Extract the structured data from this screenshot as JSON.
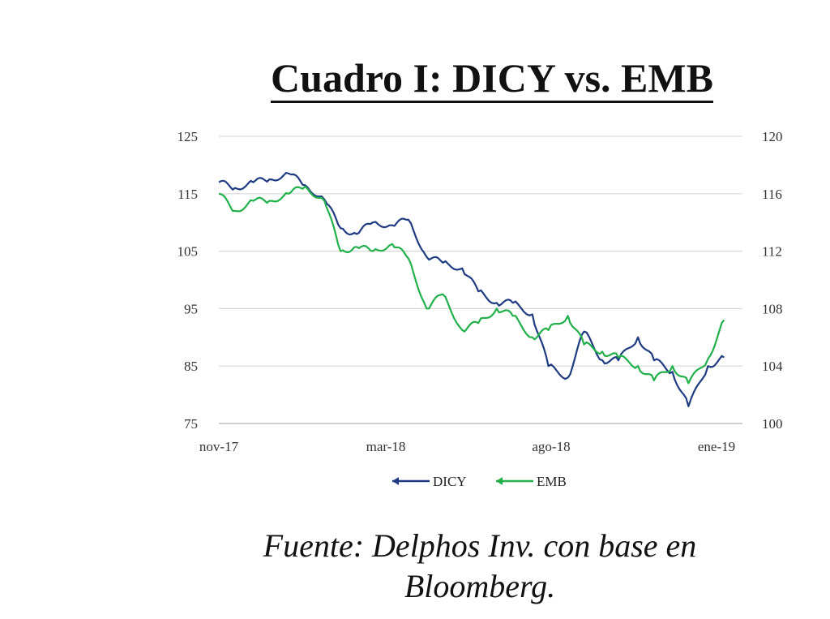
{
  "chart_data": {
    "type": "line",
    "title": "Cuadro I: DICY vs. EMB",
    "x_ticks": [
      "nov-17",
      "mar-18",
      "ago-18",
      "ene-19"
    ],
    "x_range": [
      "2017-11",
      "2019-01"
    ],
    "y_left": {
      "ticks": [
        "125",
        "115",
        "105",
        "95",
        "85",
        "75"
      ],
      "range": [
        75,
        125
      ]
    },
    "y_right": {
      "ticks": [
        "120",
        "116",
        "112",
        "108",
        "104",
        "100"
      ],
      "range": [
        100,
        120
      ]
    },
    "grid": true,
    "legend_position": "bottom",
    "series": [
      {
        "name": "DICY",
        "axis": "left",
        "color": "#1f3b82",
        "x": [
          "2017-11-01",
          "2017-11-15",
          "2017-12-01",
          "2017-12-15",
          "2018-01-01",
          "2018-01-15",
          "2018-02-01",
          "2018-02-15",
          "2018-03-01",
          "2018-03-15",
          "2018-04-01",
          "2018-04-15",
          "2018-05-01",
          "2018-05-15",
          "2018-06-01",
          "2018-06-15",
          "2018-07-01",
          "2018-07-15",
          "2018-08-01",
          "2018-08-15",
          "2018-09-01",
          "2018-09-15",
          "2018-10-01",
          "2018-10-15",
          "2018-11-01",
          "2018-11-15",
          "2018-12-01",
          "2018-12-15",
          "2019-01-01",
          "2019-01-15"
        ],
        "values": [
          117,
          116,
          117,
          117.5,
          118.5,
          116.5,
          114,
          109,
          108,
          110,
          109.5,
          110.5,
          104,
          103,
          102,
          98,
          96,
          96,
          94,
          85,
          83,
          91,
          86,
          86,
          90,
          86,
          84,
          78,
          85,
          86.5
        ]
      },
      {
        "name": "EMB",
        "axis": "right",
        "color": "#22b04a",
        "x": [
          "2017-11-01",
          "2017-11-15",
          "2017-12-01",
          "2017-12-15",
          "2018-01-01",
          "2018-01-15",
          "2018-02-01",
          "2018-02-15",
          "2018-03-01",
          "2018-03-15",
          "2018-04-01",
          "2018-04-15",
          "2018-05-01",
          "2018-05-15",
          "2018-06-01",
          "2018-06-15",
          "2018-07-01",
          "2018-07-15",
          "2018-08-01",
          "2018-08-15",
          "2018-09-01",
          "2018-09-15",
          "2018-10-01",
          "2018-10-15",
          "2018-11-01",
          "2018-11-15",
          "2018-12-01",
          "2018-12-15",
          "2019-01-01",
          "2019-01-15"
        ],
        "values": [
          116,
          114.8,
          115.5,
          115.5,
          116,
          116.5,
          115.5,
          112,
          112.3,
          112,
          112.5,
          111.5,
          108,
          109,
          106.5,
          107,
          108,
          107.5,
          106,
          106.5,
          107.5,
          105.5,
          105,
          104.6,
          104,
          103,
          104,
          102.8,
          104.5,
          107.2
        ]
      }
    ]
  },
  "source": "Fuente: Delphos Inv. con base en Bloomberg."
}
